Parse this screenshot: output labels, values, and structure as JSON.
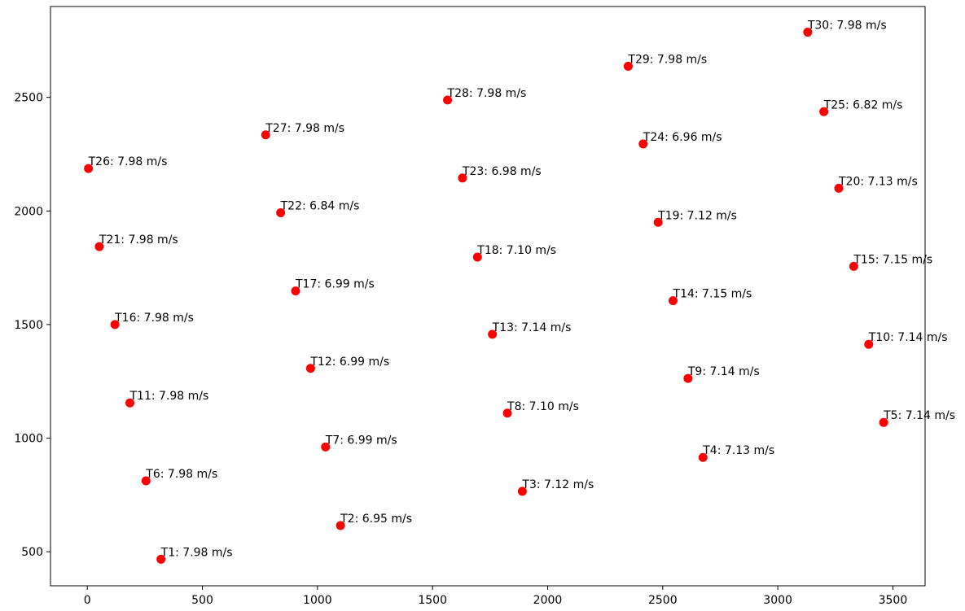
{
  "chart_data": {
    "type": "scatter",
    "title": "",
    "xlabel": "",
    "ylabel": "",
    "xlim": [
      -160,
      3640
    ],
    "ylim": [
      350,
      2900
    ],
    "xticks": [
      0,
      500,
      1000,
      1500,
      2000,
      2500,
      3000,
      3500
    ],
    "yticks": [
      500,
      1000,
      1500,
      2000,
      2500
    ],
    "grid": false,
    "legend": "none",
    "marker_color": "#ff0000",
    "points": [
      {
        "x": 320,
        "y": 467,
        "label": "T1: 7.98 m/s"
      },
      {
        "x": 1100,
        "y": 615,
        "label": "T2: 6.95 m/s"
      },
      {
        "x": 1890,
        "y": 766,
        "label": "T3: 7.12 m/s"
      },
      {
        "x": 2675,
        "y": 915,
        "label": "T4: 7.13 m/s"
      },
      {
        "x": 3460,
        "y": 1069,
        "label": "T5: 7.14 m/s"
      },
      {
        "x": 255,
        "y": 812,
        "label": "T6: 7.98 m/s"
      },
      {
        "x": 1035,
        "y": 961,
        "label": "T7: 6.99 m/s"
      },
      {
        "x": 1825,
        "y": 1110,
        "label": "T8: 7.10 m/s"
      },
      {
        "x": 2610,
        "y": 1263,
        "label": "T9: 7.14 m/s"
      },
      {
        "x": 3395,
        "y": 1413,
        "label": "T10: 7.14 m/s"
      },
      {
        "x": 185,
        "y": 1155,
        "label": "T11: 7.98 m/s"
      },
      {
        "x": 970,
        "y": 1307,
        "label": "T12: 6.99 m/s"
      },
      {
        "x": 1760,
        "y": 1457,
        "label": "T13: 7.14 m/s"
      },
      {
        "x": 2545,
        "y": 1605,
        "label": "T14: 7.15 m/s"
      },
      {
        "x": 3330,
        "y": 1756,
        "label": "T15: 7.15 m/s"
      },
      {
        "x": 120,
        "y": 1500,
        "label": "T16: 7.98 m/s"
      },
      {
        "x": 905,
        "y": 1648,
        "label": "T17: 6.99 m/s"
      },
      {
        "x": 1695,
        "y": 1797,
        "label": "T18: 7.10 m/s"
      },
      {
        "x": 2480,
        "y": 1950,
        "label": "T19: 7.12 m/s"
      },
      {
        "x": 3265,
        "y": 2100,
        "label": "T20: 7.13 m/s"
      },
      {
        "x": 52,
        "y": 1843,
        "label": "T21: 7.98 m/s"
      },
      {
        "x": 840,
        "y": 1992,
        "label": "T22: 6.84 m/s"
      },
      {
        "x": 1630,
        "y": 2145,
        "label": "T23: 6.98 m/s"
      },
      {
        "x": 2415,
        "y": 2295,
        "label": "T24: 6.96 m/s"
      },
      {
        "x": 3200,
        "y": 2437,
        "label": "T25: 6.82 m/s"
      },
      {
        "x": 5,
        "y": 2187,
        "label": "T26: 7.98 m/s"
      },
      {
        "x": 775,
        "y": 2335,
        "label": "T27: 7.98 m/s"
      },
      {
        "x": 1565,
        "y": 2488,
        "label": "T28: 7.98 m/s"
      },
      {
        "x": 2350,
        "y": 2637,
        "label": "T29: 7.98 m/s"
      },
      {
        "x": 3130,
        "y": 2787,
        "label": "T30: 7.98 m/s"
      }
    ]
  }
}
